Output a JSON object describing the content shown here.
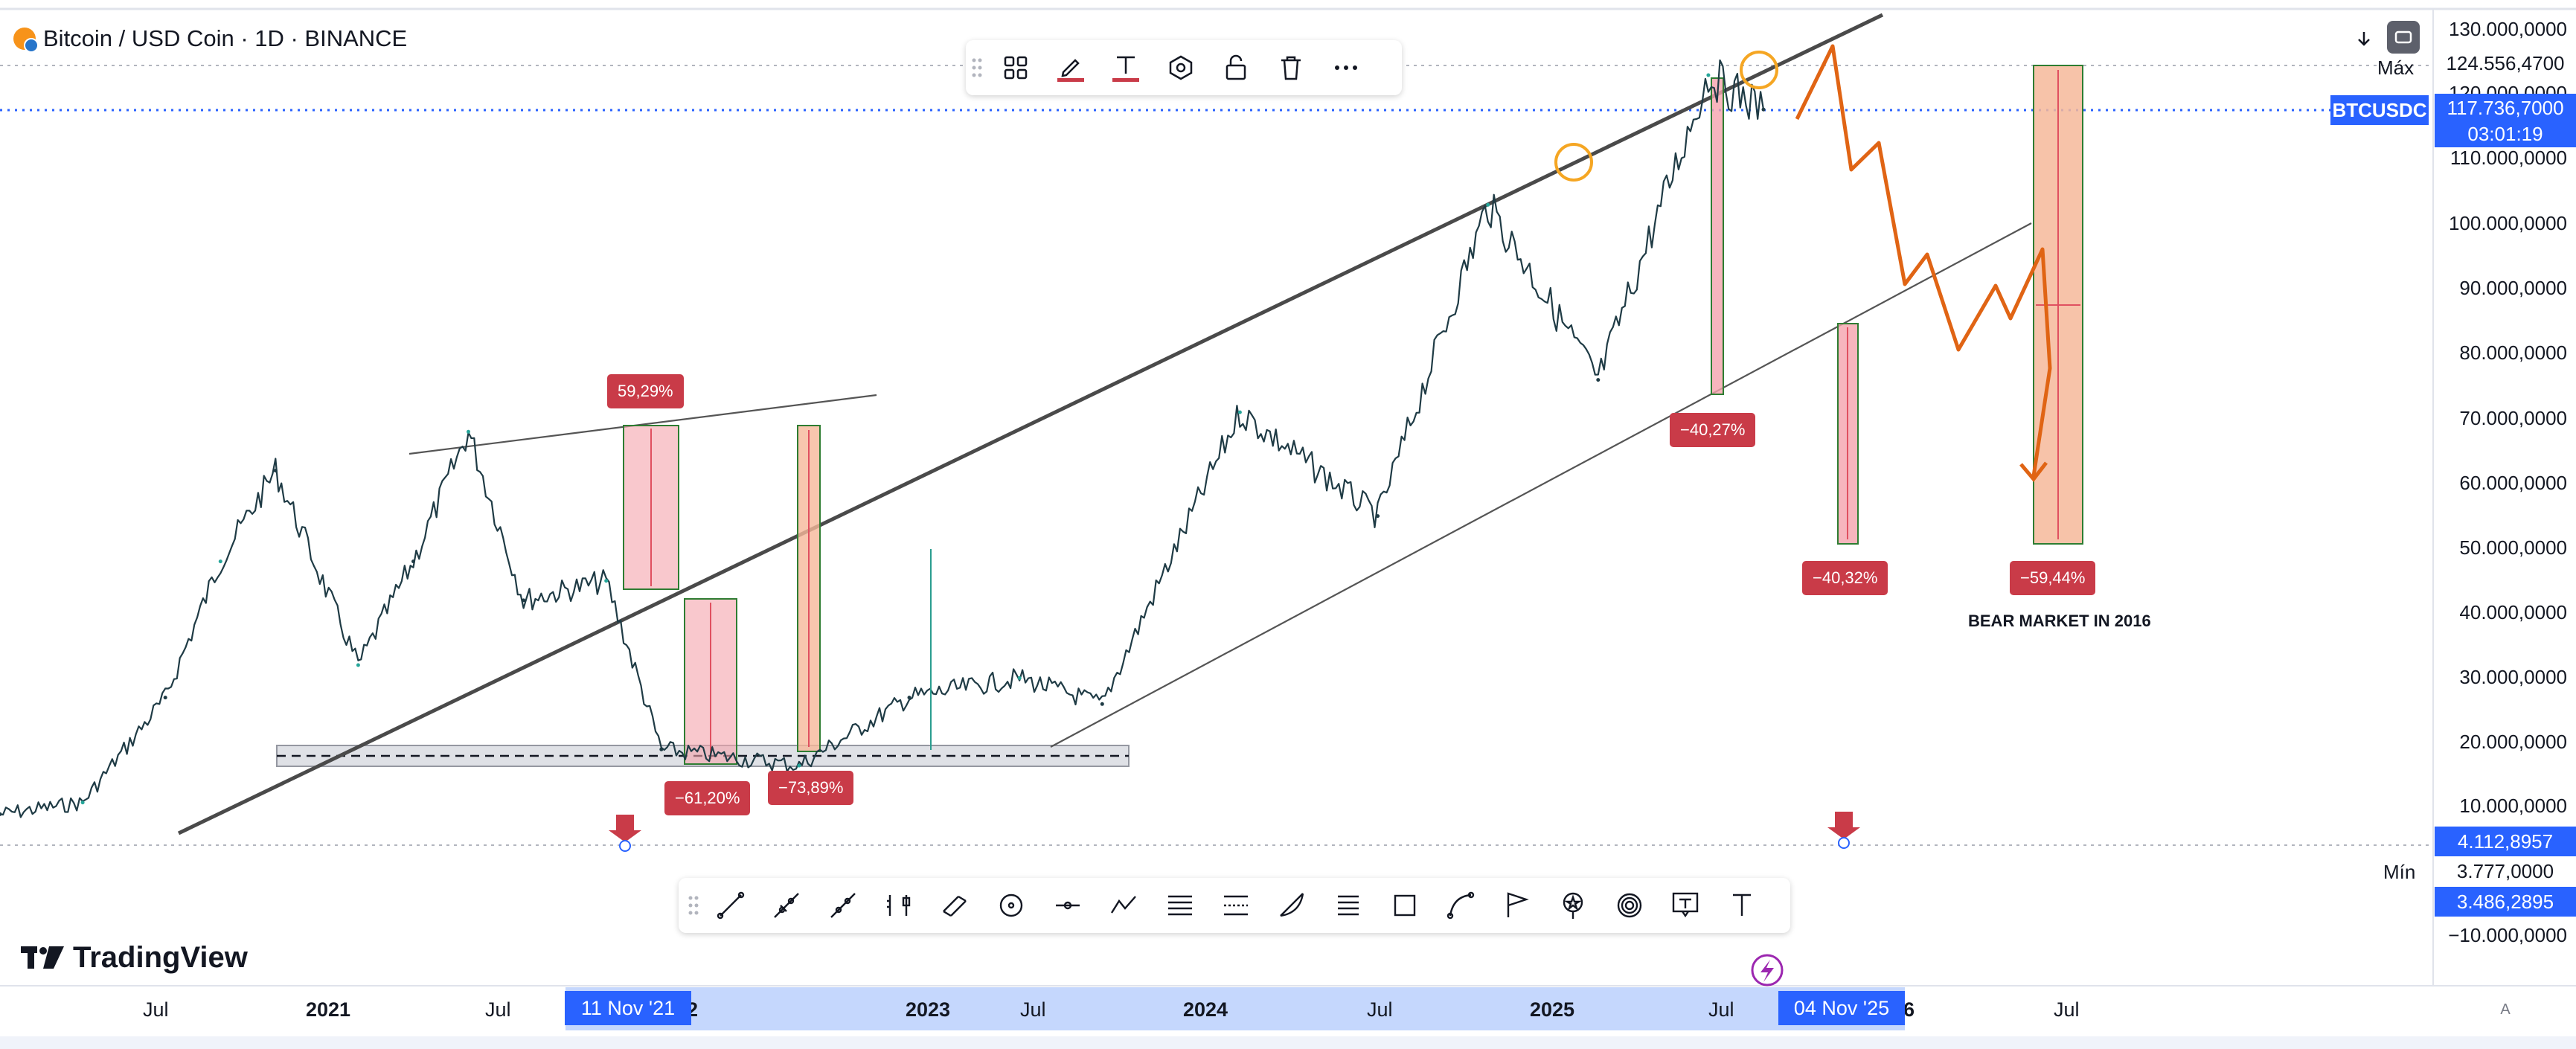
{
  "header": {
    "title": "Bitcoin / USD Coin · 1D · BINANCE"
  },
  "brand": {
    "name": "TradingView"
  },
  "price_axis": {
    "labels": [
      "130.000,0000",
      "120.000,0000",
      "110.000,0000",
      "100.000,0000",
      "90.000,0000",
      "80.000,0000",
      "70.000,0000",
      "60.000,0000",
      "50.000,0000",
      "40.000,0000",
      "30.000,0000",
      "20.000,0000",
      "10.000,0000",
      "−10.000,0000"
    ],
    "max_label": "Máx",
    "max_value": "124.556,4700",
    "symbol": "BTCUSDC",
    "current_price": "117.736,7000",
    "countdown": "03:01:19",
    "low_marker": "4.112,8957",
    "min_label": "Mín",
    "min_value": "3.777,0000",
    "min_marker": "3.486,2895"
  },
  "time_axis": {
    "labels": [
      "Jul",
      "2021",
      "Jul",
      "2022",
      "2023",
      "Jul",
      "2024",
      "Jul",
      "2025",
      "Jul",
      "2026",
      "Jul"
    ],
    "range_start": "11 Nov '21",
    "range_end": "04 Nov '25",
    "auto_label": "A"
  },
  "annotations": {
    "pct_59": "59,29%",
    "pct_61": "−61,20%",
    "pct_73": "−73,89%",
    "pct_4027": "−40,27%",
    "pct_4032": "−40,32%",
    "pct_5944": "−59,44%",
    "bear_note": "BEAR MARKET IN 2016"
  },
  "floating_toolbar": [
    "grid-icon",
    "pencil-icon",
    "text-icon",
    "hexagon-icon",
    "lock-icon",
    "trash-icon",
    "more-icon"
  ],
  "drawing_toolbar": [
    "trend-line-icon",
    "ray-icon",
    "path-icon",
    "ruler-icon",
    "parallel-channel-icon",
    "circle-icon",
    "horizontal-ray-icon",
    "zigzag-icon",
    "fib-retracement-icon",
    "gann-icon",
    "arc-icon",
    "lines-icon",
    "rectangle-icon",
    "curve-icon",
    "flag-icon",
    "pin-icon",
    "spiral-icon",
    "text-box-icon",
    "text-icon"
  ],
  "colors": {
    "accent": "#2962ff",
    "up": "#26a69a",
    "down": "#1a2a35",
    "loss": "#c93b48",
    "projection": "#e06414",
    "circle": "#f5a623"
  },
  "chart_data": {
    "type": "line",
    "title": "Bitcoin / USD Coin · 1D · BINANCE",
    "xlabel": "",
    "ylabel": "",
    "x": [
      "2020-06",
      "2020-09",
      "2020-12",
      "2021-02",
      "2021-04",
      "2021-07",
      "2021-09",
      "2021-11",
      "2022-01",
      "2022-04",
      "2022-06",
      "2022-11",
      "2023-03",
      "2023-07",
      "2023-10",
      "2024-03",
      "2024-08",
      "2024-12",
      "2025-04",
      "2025-08",
      "2025-10"
    ],
    "series": [
      {
        "values": [
          9000,
          10800,
          27000,
          48000,
          62000,
          32000,
          48000,
          68000,
          42000,
          45000,
          19000,
          16500,
          27000,
          30000,
          26000,
          71000,
          55000,
          103000,
          76000,
          123000,
          117700
        ]
      }
    ],
    "ylim": [
      -10000,
      130000
    ],
    "log_scale": false,
    "grid": false
  }
}
